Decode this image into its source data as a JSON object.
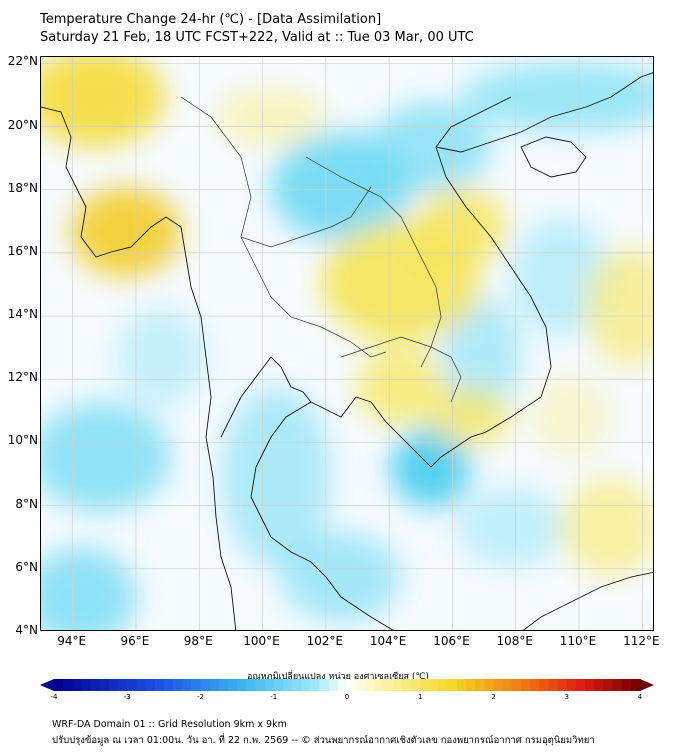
{
  "header": {
    "title": "Temperature Change 24-hr (℃) - [Data Assimilation]",
    "subtitle": "Saturday 21 Feb, 18 UTC FCST+222, Valid at :: Tue 03 Mar, 00 UTC"
  },
  "map": {
    "lat_labels": [
      "22°N",
      "20°N",
      "18°N",
      "16°N",
      "14°N",
      "12°N",
      "10°N",
      "8°N",
      "6°N",
      "4°N"
    ],
    "lat_values": [
      22,
      20,
      18,
      16,
      14,
      12,
      10,
      8,
      6,
      4
    ],
    "lon_labels": [
      "94°E",
      "96°E",
      "98°E",
      "100°E",
      "102°E",
      "104°E",
      "106°E",
      "108°E",
      "110°E",
      "112°E"
    ],
    "lon_values": [
      94,
      96,
      98,
      100,
      102,
      104,
      106,
      108,
      110,
      112
    ],
    "lat_range": [
      4,
      22.2
    ],
    "lon_range": [
      93,
      112.4
    ]
  },
  "colorbar": {
    "title": "อุณหภูมิเปลี่ยนแปลง หน่วย องศาเซลเซียส (℃)",
    "ticks": [
      "-4",
      "-3",
      "-2",
      "-1",
      "0",
      "1",
      "2",
      "3",
      "4"
    ],
    "range": [
      -4,
      4
    ]
  },
  "footer": {
    "line1": "WRF-DA Domain 01 :: Grid Resolution 9km x 9km",
    "line2": "ปรับปรุงข้อมูล ณ เวลา 01:00น. วัน อา. ที่ 22 ก.พ. 2569 -- © ส่วนพยากรณ์อากาศเชิงตัวเลข กองพยากรณ์อากาศ กรมอุตุนิยมวิทยา"
  },
  "colors": {
    "warm": "#f7e24a",
    "cool": "#4dd6f0",
    "neutral": "#f6fbff",
    "border": "#000000",
    "grid": "#d8d8d8"
  }
}
